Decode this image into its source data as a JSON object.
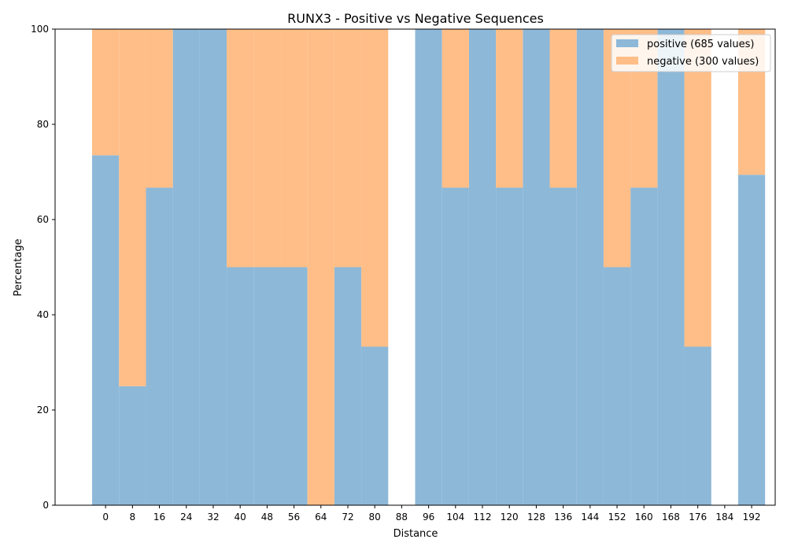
{
  "chart_data": {
    "type": "bar",
    "stacked": true,
    "title": "RUNX3 - Positive vs Negative Sequences",
    "xlabel": "Distance",
    "ylabel": "Percentage",
    "ylim": [
      0,
      100
    ],
    "xlim": [
      -15,
      199
    ],
    "bin_width": 8,
    "x": [
      0,
      8,
      16,
      24,
      32,
      40,
      48,
      56,
      64,
      72,
      80,
      88,
      96,
      104,
      112,
      120,
      128,
      136,
      144,
      152,
      160,
      168,
      176,
      184,
      192
    ],
    "x_ticks": [
      0,
      8,
      16,
      24,
      32,
      40,
      48,
      56,
      64,
      72,
      80,
      88,
      96,
      104,
      112,
      120,
      128,
      136,
      144,
      152,
      160,
      168,
      176,
      184,
      192
    ],
    "y_ticks": [
      0,
      20,
      40,
      60,
      80,
      100
    ],
    "grid": false,
    "legend_position": "top-right",
    "series": [
      {
        "name": "positive (685 values)",
        "color": "#8db8d8",
        "values": [
          73.5,
          25,
          66.7,
          100,
          100,
          50,
          50,
          50,
          0,
          50,
          33.3,
          0,
          100,
          66.7,
          100,
          66.7,
          100,
          66.7,
          100,
          50,
          66.7,
          100,
          33.3,
          0,
          69.4
        ]
      },
      {
        "name": "negative (300 values)",
        "color": "#ffbe87",
        "values": [
          26.5,
          75,
          33.3,
          0,
          0,
          50,
          50,
          50,
          100,
          50,
          66.7,
          0,
          0,
          33.3,
          0,
          33.3,
          0,
          33.3,
          0,
          50,
          33.3,
          0,
          66.7,
          0,
          30.6
        ]
      }
    ]
  }
}
